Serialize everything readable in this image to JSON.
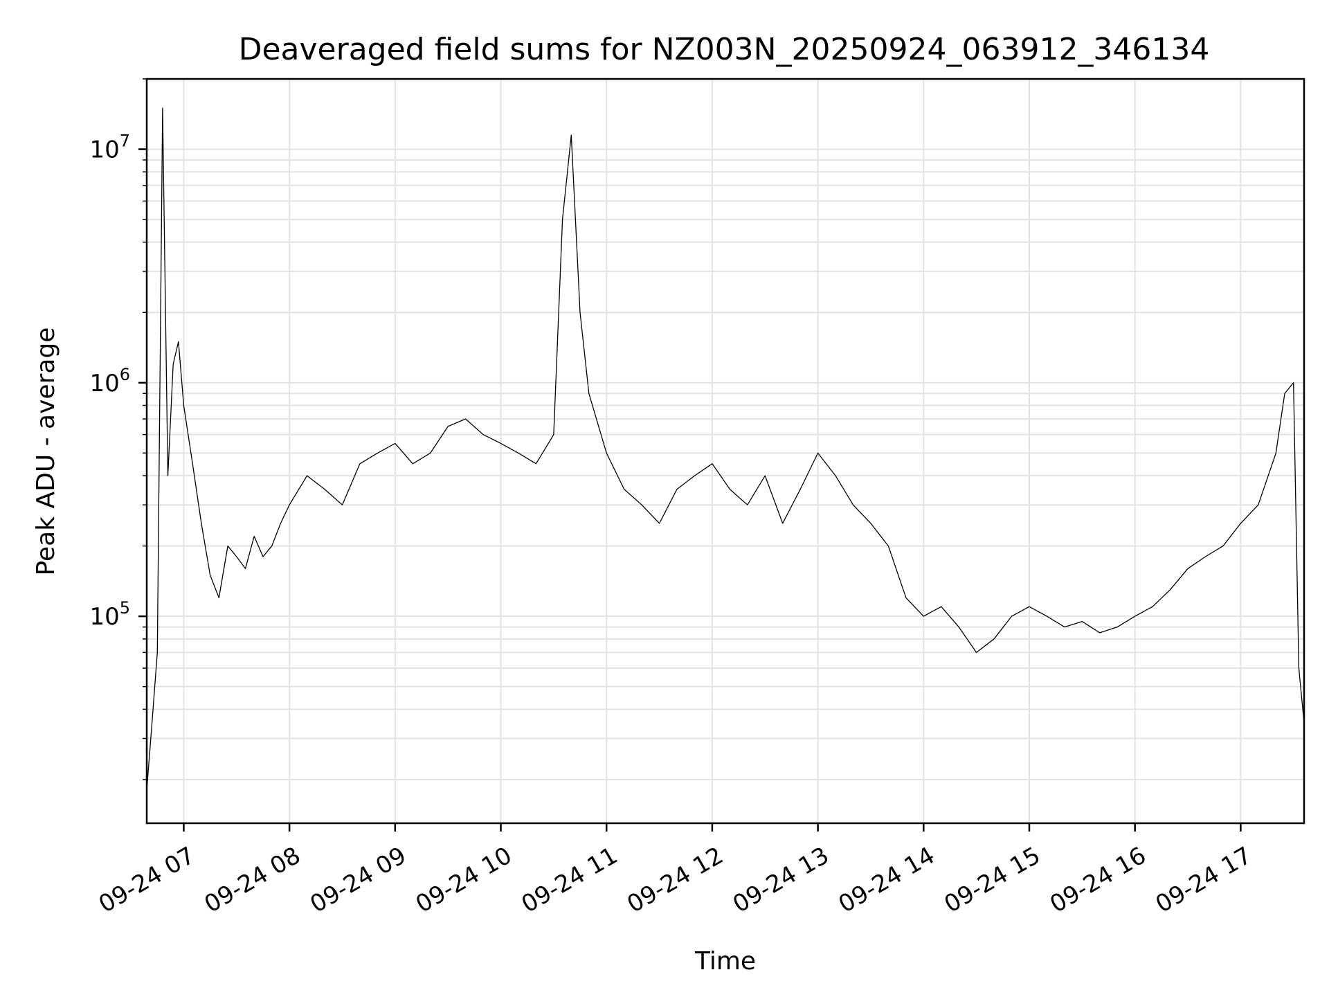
{
  "chart_data": {
    "type": "line",
    "title": "Deaveraged field sums for NZ003N_20250924_063912_346134",
    "xlabel": "Time",
    "ylabel": "Peak ADU - average",
    "yscale": "log",
    "ylim": [
      13000,
      20000000
    ],
    "xlim": [
      "2025-09-24 06:39",
      "2025-09-24 17:36"
    ],
    "grid": true,
    "x_ticks": [
      {
        "label": "09-24 07",
        "value": "2025-09-24 07:00"
      },
      {
        "label": "09-24 08",
        "value": "2025-09-24 08:00"
      },
      {
        "label": "09-24 09",
        "value": "2025-09-24 09:00"
      },
      {
        "label": "09-24 10",
        "value": "2025-09-24 10:00"
      },
      {
        "label": "09-24 11",
        "value": "2025-09-24 11:00"
      },
      {
        "label": "09-24 12",
        "value": "2025-09-24 12:00"
      },
      {
        "label": "09-24 13",
        "value": "2025-09-24 13:00"
      },
      {
        "label": "09-24 14",
        "value": "2025-09-24 14:00"
      },
      {
        "label": "09-24 15",
        "value": "2025-09-24 15:00"
      },
      {
        "label": "09-24 16",
        "value": "2025-09-24 16:00"
      },
      {
        "label": "09-24 17",
        "value": "2025-09-24 17:00"
      }
    ],
    "y_ticks": [
      {
        "base": "10",
        "exp": "5",
        "value": 100000
      },
      {
        "base": "10",
        "exp": "6",
        "value": 1000000
      },
      {
        "base": "10",
        "exp": "7",
        "value": 10000000
      }
    ],
    "series": [
      {
        "color": "#000000",
        "x": [
          "2025-09-24 06:39",
          "2025-09-24 06:42",
          "2025-09-24 06:45",
          "2025-09-24 06:48",
          "2025-09-24 06:51",
          "2025-09-24 06:54",
          "2025-09-24 06:57",
          "2025-09-24 07:00",
          "2025-09-24 07:05",
          "2025-09-24 07:10",
          "2025-09-24 07:15",
          "2025-09-24 07:20",
          "2025-09-24 07:25",
          "2025-09-24 07:30",
          "2025-09-24 07:35",
          "2025-09-24 07:40",
          "2025-09-24 07:45",
          "2025-09-24 07:50",
          "2025-09-24 07:55",
          "2025-09-24 08:00",
          "2025-09-24 08:10",
          "2025-09-24 08:20",
          "2025-09-24 08:30",
          "2025-09-24 08:40",
          "2025-09-24 08:50",
          "2025-09-24 09:00",
          "2025-09-24 09:10",
          "2025-09-24 09:20",
          "2025-09-24 09:30",
          "2025-09-24 09:40",
          "2025-09-24 09:50",
          "2025-09-24 10:00",
          "2025-09-24 10:10",
          "2025-09-24 10:20",
          "2025-09-24 10:30",
          "2025-09-24 10:35",
          "2025-09-24 10:40",
          "2025-09-24 10:45",
          "2025-09-24 10:50",
          "2025-09-24 11:00",
          "2025-09-24 11:10",
          "2025-09-24 11:20",
          "2025-09-24 11:30",
          "2025-09-24 11:40",
          "2025-09-24 11:50",
          "2025-09-24 12:00",
          "2025-09-24 12:10",
          "2025-09-24 12:20",
          "2025-09-24 12:30",
          "2025-09-24 12:40",
          "2025-09-24 12:50",
          "2025-09-24 13:00",
          "2025-09-24 13:10",
          "2025-09-24 13:20",
          "2025-09-24 13:30",
          "2025-09-24 13:40",
          "2025-09-24 13:50",
          "2025-09-24 14:00",
          "2025-09-24 14:10",
          "2025-09-24 14:20",
          "2025-09-24 14:30",
          "2025-09-24 14:40",
          "2025-09-24 14:50",
          "2025-09-24 15:00",
          "2025-09-24 15:10",
          "2025-09-24 15:20",
          "2025-09-24 15:30",
          "2025-09-24 15:40",
          "2025-09-24 15:50",
          "2025-09-24 16:00",
          "2025-09-24 16:10",
          "2025-09-24 16:20",
          "2025-09-24 16:30",
          "2025-09-24 16:40",
          "2025-09-24 16:50",
          "2025-09-24 17:00",
          "2025-09-24 17:10",
          "2025-09-24 17:20",
          "2025-09-24 17:25",
          "2025-09-24 17:30",
          "2025-09-24 17:33",
          "2025-09-24 17:36"
        ],
        "y": [
          18000,
          35000,
          70000,
          15000000,
          400000,
          1200000,
          1500000,
          800000,
          450000,
          250000,
          150000,
          120000,
          200000,
          180000,
          160000,
          220000,
          180000,
          200000,
          250000,
          300000,
          400000,
          350000,
          300000,
          450000,
          500000,
          550000,
          450000,
          500000,
          650000,
          700000,
          600000,
          550000,
          500000,
          450000,
          600000,
          5000000,
          11500000,
          2000000,
          900000,
          500000,
          350000,
          300000,
          250000,
          350000,
          400000,
          450000,
          350000,
          300000,
          400000,
          250000,
          350000,
          500000,
          400000,
          300000,
          250000,
          200000,
          120000,
          100000,
          110000,
          90000,
          70000,
          80000,
          100000,
          110000,
          100000,
          90000,
          95000,
          85000,
          90000,
          100000,
          110000,
          130000,
          160000,
          180000,
          200000,
          250000,
          300000,
          500000,
          900000,
          1000000,
          60000,
          35000
        ]
      }
    ]
  }
}
